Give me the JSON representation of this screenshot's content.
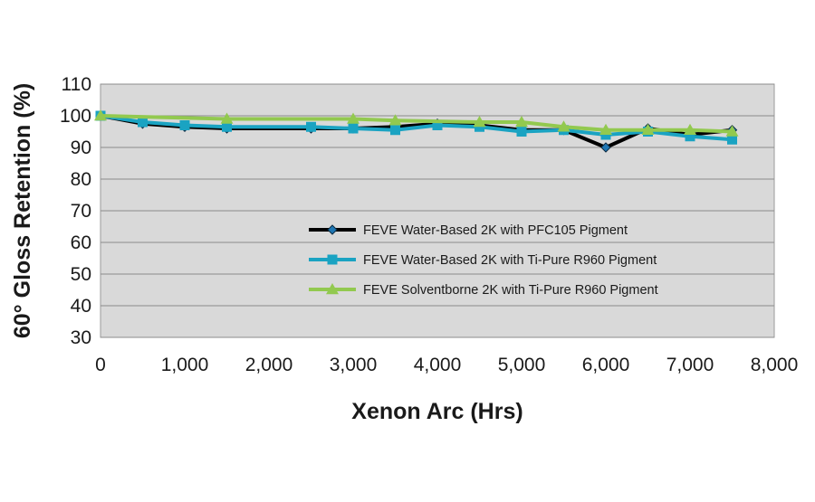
{
  "chart_data": {
    "type": "line",
    "xlabel": "Xenon Arc (Hrs)",
    "ylabel": "60° Gloss Retention (%)",
    "xlim": [
      0,
      8000
    ],
    "ylim": [
      30,
      110
    ],
    "x_ticks": [
      0,
      1000,
      2000,
      3000,
      4000,
      5000,
      6000,
      7000,
      8000
    ],
    "x_tick_labels": [
      "0",
      "1,000",
      "2,000",
      "3,000",
      "4,000",
      "5,000",
      "6,000",
      "7,000",
      "8,000"
    ],
    "y_ticks": [
      30,
      40,
      50,
      60,
      70,
      80,
      90,
      100,
      110
    ],
    "y_tick_labels": [
      "30",
      "40",
      "50",
      "60",
      "70",
      "80",
      "90",
      "100",
      "110"
    ],
    "grid": true,
    "plot_background": "#d9d9d9",
    "legend_position": "inside-lower-right",
    "series": [
      {
        "name": "FEVE Water-Based 2K with PFC105 Pigment",
        "line_color": "#000000",
        "marker": "diamond",
        "marker_color": "#1f77b4",
        "x": [
          0,
          500,
          1000,
          1500,
          2500,
          3000,
          3500,
          4000,
          4500,
          5000,
          5500,
          6000,
          6500,
          7000,
          7500
        ],
        "y": [
          100,
          97.5,
          96.5,
          96,
          96,
          96,
          96.5,
          97.5,
          97,
          95.5,
          95.5,
          90,
          96,
          94,
          95.5
        ]
      },
      {
        "name": "FEVE Water-Based 2K with Ti-Pure R960 Pigment",
        "line_color": "#1aa3c2",
        "marker": "square",
        "marker_color": "#1aa3c2",
        "x": [
          0,
          500,
          1000,
          1500,
          2500,
          3000,
          3500,
          4000,
          4500,
          5000,
          5500,
          6000,
          6500,
          7000,
          7500
        ],
        "y": [
          100,
          98,
          97,
          96.5,
          96.5,
          96,
          95.5,
          97,
          96.5,
          95,
          95.5,
          94,
          95,
          93.5,
          92.5
        ]
      },
      {
        "name": "FEVE Solventborne 2K with Ti-Pure R960 Pigment",
        "line_color": "#92c94f",
        "marker": "triangle",
        "marker_color": "#92c94f",
        "x": [
          0,
          1500,
          3000,
          3500,
          4500,
          5000,
          5500,
          6000,
          6500,
          7000,
          7500
        ],
        "y": [
          100,
          99,
          99,
          98.5,
          98,
          98,
          96.5,
          95.5,
          95.5,
          95.5,
          95
        ]
      }
    ]
  }
}
